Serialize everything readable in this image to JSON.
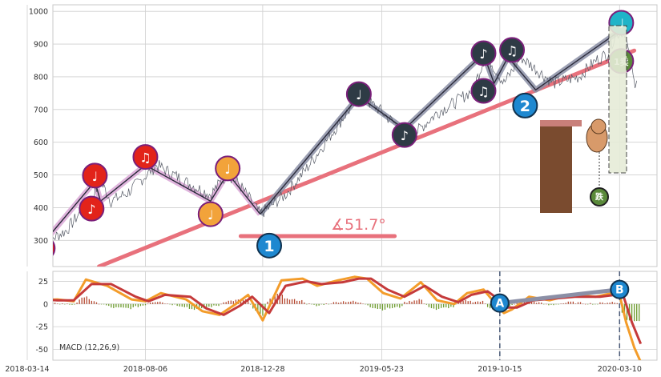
{
  "colors": {
    "price": "#555a66",
    "trend": "#e8717c",
    "zigzag_light": "#d9a7d6",
    "zigzag_dark": "#8b8fa6",
    "red": "#e2231a",
    "orange": "#f2a33a",
    "dark": "#2e3b45",
    "cyan": "#1fb4c8",
    "blue": "#1e88d0",
    "green_icon": "#5a8a3a",
    "macd_orange": "#f39c2a",
    "macd_red": "#c53a3a",
    "hist_up": "#b5472f",
    "hist_down": "#6b9a2c"
  },
  "chart_data": [
    {
      "type": "line",
      "panel": "price",
      "xlim": [
        "2018-03-14",
        "2020-04-20"
      ],
      "ylim": [
        220,
        1020
      ],
      "y_ticks": [
        300,
        400,
        500,
        600,
        700,
        800,
        900,
        1000
      ],
      "x_ticks": [
        "2018-03-14",
        "2018-08-06",
        "2018-12-28",
        "2019-05-23",
        "2019-10-15",
        "2020-03-10"
      ],
      "grid": true,
      "series": [
        {
          "role": "price",
          "x": [
            "2018-04-02",
            "2018-05-01",
            "2018-06-01",
            "2018-06-12",
            "2018-06-25",
            "2018-07-15",
            "2018-08-20",
            "2018-09-10",
            "2018-10-01",
            "2018-10-25",
            "2018-11-15",
            "2018-12-01",
            "2018-12-25",
            "2019-01-25",
            "2019-02-20",
            "2019-03-15",
            "2019-04-10",
            "2019-04-28",
            "2019-05-20",
            "2019-06-15",
            "2019-06-30",
            "2019-07-30",
            "2019-08-20",
            "2019-09-12",
            "2019-09-28",
            "2019-10-20",
            "2019-11-10",
            "2019-11-25",
            "2019-12-20",
            "2020-01-20",
            "2020-02-10",
            "2020-02-24",
            "2020-03-05",
            "2020-03-16",
            "2020-03-28",
            "2020-04-01"
          ],
          "y": [
            290,
            330,
            430,
            480,
            420,
            445,
            530,
            500,
            470,
            440,
            505,
            465,
            380,
            440,
            520,
            600,
            690,
            740,
            700,
            640,
            620,
            690,
            720,
            760,
            870,
            780,
            860,
            830,
            780,
            800,
            850,
            870,
            930,
            940,
            780,
            800
          ]
        }
      ],
      "trendlines": [
        {
          "x": [
            "2018-06-10",
            "2020-03-28"
          ],
          "y": [
            220,
            880
          ]
        },
        {
          "x": [
            "2018-12-01",
            "2019-06-08"
          ],
          "y": [
            313,
            313
          ]
        }
      ],
      "zigzag": [
        {
          "x": [
            "2018-04-02",
            "2018-06-05",
            "2018-06-12",
            "2018-08-06",
            "2018-10-25",
            "2018-11-15",
            "2018-12-25"
          ],
          "y": [
            290,
            480,
            420,
            530,
            420,
            505,
            380
          ],
          "style": "light"
        },
        {
          "x": [
            "2018-12-25",
            "2019-04-25",
            "2019-06-20",
            "2019-09-25",
            "2019-10-08",
            "2019-10-25",
            "2019-11-28",
            "2020-03-10"
          ],
          "y": [
            380,
            740,
            640,
            870,
            780,
            860,
            760,
            940
          ],
          "style": "dark"
        }
      ],
      "markers": [
        {
          "x": "2018-04-02",
          "y": 276,
          "glyph": "♩",
          "color": "red"
        },
        {
          "x": "2018-06-05",
          "y": 498,
          "glyph": "♩",
          "color": "red"
        },
        {
          "x": "2018-06-01",
          "y": 397,
          "glyph": "♪",
          "color": "red"
        },
        {
          "x": "2018-08-06",
          "y": 555,
          "glyph": "♫",
          "color": "red"
        },
        {
          "x": "2018-10-25",
          "y": 380,
          "glyph": "♩",
          "color": "orange"
        },
        {
          "x": "2018-11-15",
          "y": 520,
          "glyph": "♩",
          "color": "orange"
        },
        {
          "x": "2019-04-25",
          "y": 747,
          "glyph": "♩",
          "color": "dark"
        },
        {
          "x": "2019-06-20",
          "y": 622,
          "glyph": "♪",
          "color": "dark"
        },
        {
          "x": "2019-09-25",
          "y": 872,
          "glyph": "♪",
          "color": "dark"
        },
        {
          "x": "2019-09-25",
          "y": 757,
          "glyph": "♫",
          "color": "dark"
        },
        {
          "x": "2019-10-30",
          "y": 882,
          "glyph": "♫",
          "color": "dark"
        },
        {
          "x": "2020-03-12",
          "y": 965,
          "glyph": "♩",
          "color": "cyan"
        },
        {
          "x": "2020-03-12",
          "y": 848,
          "glyph": "1卖",
          "color": "green_icon"
        }
      ],
      "labels": [
        {
          "x": "2019-01-05",
          "y": 284,
          "text": "1"
        },
        {
          "x": "2019-11-15",
          "y": 712,
          "text": "2"
        }
      ],
      "annotations": [
        {
          "text": "∡51.7°",
          "x": "2019-04-30",
          "y": 330
        }
      ]
    },
    {
      "type": "line",
      "panel": "macd",
      "label": "MACD (12,26,9)",
      "ylim": [
        -62,
        36
      ],
      "y_ticks": [
        -50,
        -25,
        0,
        25
      ],
      "grid": true,
      "series": [
        {
          "role": "macd",
          "x": [
            "2018-04-02",
            "2018-04-20",
            "2018-05-10",
            "2018-05-25",
            "2018-06-20",
            "2018-07-20",
            "2018-08-06",
            "2018-08-25",
            "2018-09-25",
            "2018-10-15",
            "2018-11-05",
            "2018-11-25",
            "2018-12-10",
            "2018-12-28",
            "2019-01-20",
            "2019-02-15",
            "2019-03-05",
            "2019-03-30",
            "2019-04-20",
            "2019-05-05",
            "2019-05-25",
            "2019-06-15",
            "2019-07-10",
            "2019-07-30",
            "2019-08-20",
            "2019-09-05",
            "2019-09-25",
            "2019-10-10",
            "2019-10-20",
            "2019-10-30",
            "2019-11-20",
            "2019-12-15",
            "2020-01-10",
            "2020-02-10",
            "2020-03-01",
            "2020-03-10",
            "2020-03-18",
            "2020-03-28",
            "2020-04-05"
          ],
          "y": [
            4,
            5,
            3,
            27,
            20,
            5,
            3,
            12,
            5,
            -8,
            -12,
            0,
            10,
            -18,
            26,
            28,
            20,
            26,
            30,
            28,
            12,
            6,
            24,
            4,
            0,
            12,
            16,
            0,
            -10,
            -6,
            8,
            4,
            10,
            8,
            12,
            10,
            -20,
            -48,
            -64
          ]
        },
        {
          "role": "signal",
          "x": [
            "2018-04-02",
            "2018-04-20",
            "2018-05-10",
            "2018-06-01",
            "2018-06-25",
            "2018-07-25",
            "2018-08-10",
            "2018-08-30",
            "2018-09-30",
            "2018-10-20",
            "2018-11-10",
            "2018-11-30",
            "2018-12-15",
            "2019-01-05",
            "2019-01-25",
            "2019-02-20",
            "2019-03-10",
            "2019-04-05",
            "2019-04-25",
            "2019-05-10",
            "2019-05-30",
            "2019-06-20",
            "2019-07-15",
            "2019-08-05",
            "2019-08-25",
            "2019-09-10",
            "2019-09-30",
            "2019-10-15",
            "2019-10-25",
            "2019-11-05",
            "2019-11-25",
            "2019-12-20",
            "2020-01-15",
            "2020-02-15",
            "2020-03-05",
            "2020-03-15",
            "2020-03-25",
            "2020-04-05"
          ],
          "y": [
            5,
            4,
            4,
            22,
            22,
            8,
            3,
            10,
            8,
            -5,
            -12,
            -2,
            8,
            -10,
            20,
            25,
            22,
            24,
            28,
            28,
            16,
            8,
            20,
            8,
            2,
            10,
            14,
            4,
            -4,
            -4,
            4,
            6,
            8,
            8,
            10,
            8,
            -20,
            -44
          ]
        }
      ],
      "histogram_pattern": "oscillating",
      "divergence_points": [
        {
          "x": "2019-10-15",
          "y": 1,
          "text": "A"
        },
        {
          "x": "2020-03-10",
          "y": 16,
          "text": "B"
        }
      ],
      "vlines": [
        "2019-10-15",
        "2020-03-10"
      ]
    }
  ]
}
